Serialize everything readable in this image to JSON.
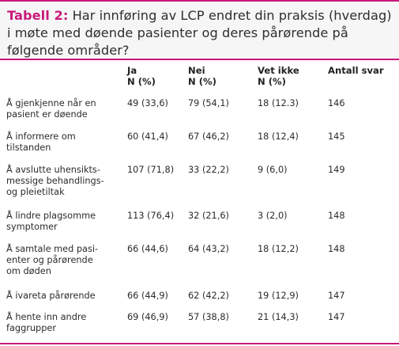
{
  "title": {
    "label": "Tabell 2:",
    "text": " Har innføring av LCP endret din praksis (hverdag) i møte med døende pasienter og deres pårørende på følgende områder?"
  },
  "table": {
    "headers": [
      {
        "line1": "",
        "line2": ""
      },
      {
        "line1": "Ja",
        "line2": "N (%)"
      },
      {
        "line1": "Nei",
        "line2": "N (%)"
      },
      {
        "line1": "Vet ikke",
        "line2": "N (%)"
      },
      {
        "line1": "Antall svar",
        "line2": ""
      }
    ],
    "rows": [
      {
        "area": "Å gjenkjenne når en\npasient er døende",
        "ja": "49 (33,6)",
        "nei": "79 (54,1)",
        "vet_ikke": "18 (12.3)",
        "antall": "146"
      },
      {
        "area": "Å informere om\ntilstanden",
        "ja": "60 (41,4)",
        "nei": "67 (46,2)",
        "vet_ikke": "18 (12,4)",
        "antall": "145"
      },
      {
        "area": "Å avslutte uhensikts-\nmessige behandlings-\nog pleietiltak",
        "ja": "107 (71,8)",
        "nei": "33 (22,2)",
        "vet_ikke": "9 (6,0)",
        "antall": "149"
      },
      {
        "area": "Å lindre plagsomme\nsymptomer",
        "ja": "113 (76,4)",
        "nei": "32 (21,6)",
        "vet_ikke": "3 (2,0)",
        "antall": "148"
      },
      {
        "area": "Å samtale med pasi-\nenter og pårørende\nom døden",
        "ja": "66 (44,6)",
        "nei": "64 (43,2)",
        "vet_ikke": "18 (12,2)",
        "antall": "148"
      },
      {
        "area": "Å ivareta pårørende",
        "ja": "66 (44,9)",
        "nei": "62 (42,2)",
        "vet_ikke": "19 (12,9)",
        "antall": "147"
      },
      {
        "area": "Å hente inn andre\nfaggrupper",
        "ja": "69 (46,9)",
        "nei": "57 (38,8)",
        "vet_ikke": "21 (14,3)",
        "antall": "147"
      }
    ]
  },
  "colors": {
    "accent": "#c8197a",
    "title_background": "#f6f6f6",
    "text": "#2b2b2b"
  }
}
